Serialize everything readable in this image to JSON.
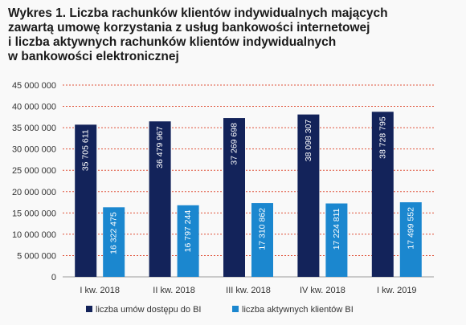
{
  "title_lines": [
    "Wykres 1. Liczba rachunków klientów indywidualnych mających",
    "zawartą umowę korzystania z usług bankowości internetowej",
    "i liczba aktywnych rachunków klientów indywidualnych",
    "w bankowości elektronicznej"
  ],
  "colors": {
    "series_1": "#13235a",
    "series_2": "#1b87cf",
    "gridline": "#e0533a"
  },
  "chart_data": {
    "type": "bar",
    "title": "Wykres 1. Liczba rachunków klientów indywidualnych mających zawartą umowę korzystania z usług bankowości internetowej i liczba aktywnych rachunków klientów indywidualnych w bankowości elektronicznej",
    "categories": [
      "I kw. 2018",
      "II kw. 2018",
      "III kw. 2018",
      "IV kw. 2018",
      "I kw. 2019"
    ],
    "series": [
      {
        "name": "liczba umów dostępu do BI",
        "values": [
          35705611,
          36479967,
          37269698,
          38098307,
          38728795
        ],
        "labels": [
          "35 705 611",
          "36 479 967",
          "37 269 698",
          "38 098 307",
          "38 728 795"
        ]
      },
      {
        "name": "liczba aktywnych klientów BI",
        "values": [
          16322475,
          16797244,
          17310862,
          17224811,
          17499552
        ],
        "labels": [
          "16 322 475",
          "16 797 244",
          "17 310 862",
          "17 224 811",
          "17 499 552"
        ]
      }
    ],
    "ylim": [
      0,
      45000000
    ],
    "yticks": [
      0,
      5000000,
      10000000,
      15000000,
      20000000,
      25000000,
      30000000,
      35000000,
      40000000,
      45000000
    ],
    "ytick_labels": [
      "0",
      "5 000 000",
      "10 000 000",
      "15 000 000",
      "20 000 000",
      "25 000 000",
      "30 000 000",
      "35 000 000",
      "40 000 000",
      "45 000 000"
    ],
    "grid": "dashed horizontal",
    "legend": "bottom"
  }
}
